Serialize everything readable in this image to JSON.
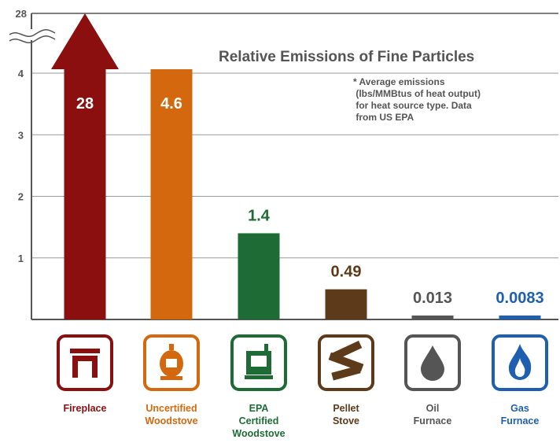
{
  "chart_data": {
    "type": "bar",
    "title": "Relative Emissions of Fine Particles",
    "note": "* Average emissions\n  (lbs/MMBtus of heat output)\n  for heat source type. Data\n  from US EPA",
    "ylim": [
      0,
      4
    ],
    "y_ticks": [
      "1",
      "2",
      "3",
      "4",
      "28"
    ],
    "axis_break": true,
    "grid": true,
    "categories": [
      "Fireplace",
      "Uncertified\nWoodstove",
      "EPA\nCertified\nWoodstove",
      "Pellet\nStove",
      "Oil\nFurnace",
      "Gas\nFurnace"
    ],
    "values": [
      28,
      4.6,
      1.4,
      0.49,
      0.013,
      0.0083
    ],
    "value_labels": [
      "28",
      "4.6",
      "1.4",
      "0.49",
      "0.013",
      "0.0083"
    ],
    "icons": [
      "fireplace-icon",
      "woodstove-icon",
      "certified-woodstove-icon",
      "pellet-icon",
      "oil-drop-icon",
      "gas-flame-icon"
    ],
    "colors": [
      "#8b0f0f",
      "#d4680f",
      "#1e6b35",
      "#5c3a1a",
      "#555555",
      "#1f5fb0"
    ]
  }
}
